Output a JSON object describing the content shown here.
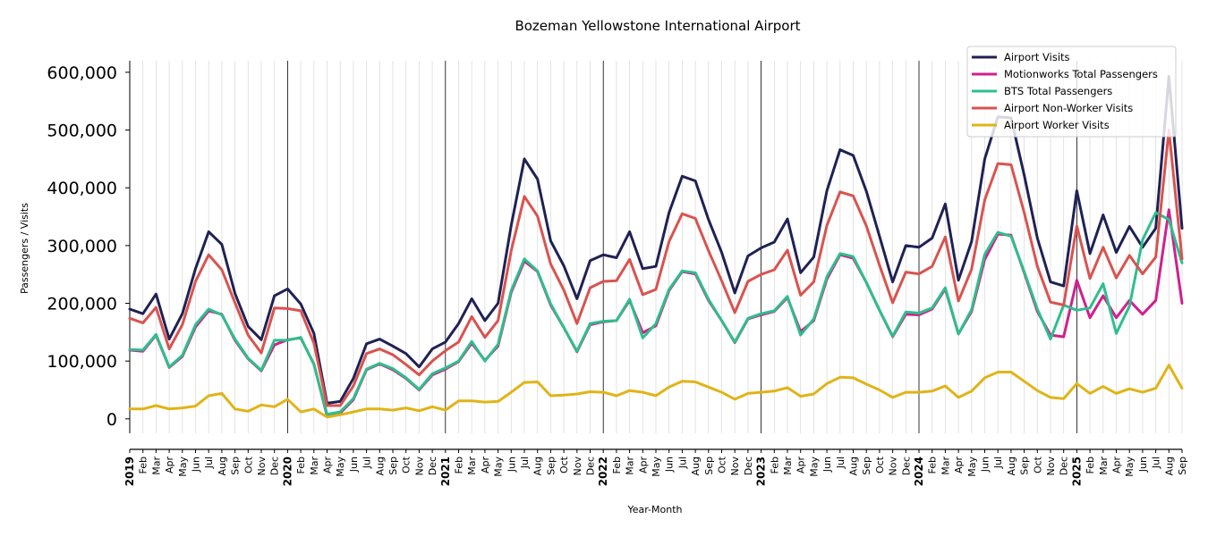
{
  "chart_data": {
    "type": "line",
    "title": "Bozeman Yellowstone International Airport",
    "xlabel": "Year-Month",
    "ylabel": "Passengers / Visits",
    "ylim": [
      -25000,
      620000
    ],
    "yticks": [
      0,
      100000,
      200000,
      300000,
      400000,
      500000,
      600000
    ],
    "ytick_labels": [
      "0",
      "100,000",
      "200,000",
      "300,000",
      "400,000",
      "500,000",
      "600,000"
    ],
    "x": [
      "2019",
      "Feb",
      "Mar",
      "Apr",
      "May",
      "Jun",
      "Jul",
      "Aug",
      "Sep",
      "Oct",
      "Nov",
      "Dec",
      "2020",
      "Feb",
      "Mar",
      "Apr",
      "May",
      "Jun",
      "Jul",
      "Aug",
      "Sep",
      "Oct",
      "Nov",
      "Dec",
      "2021",
      "Feb",
      "Mar",
      "Apr",
      "May",
      "Jun",
      "Jul",
      "Aug",
      "Sep",
      "Oct",
      "Nov",
      "Dec",
      "2022",
      "Feb",
      "Mar",
      "Apr",
      "May",
      "Jun",
      "Jul",
      "Aug",
      "Sep",
      "Oct",
      "Nov",
      "Dec",
      "2023",
      "Feb",
      "Mar",
      "Apr",
      "May",
      "Jun",
      "Jul",
      "Aug",
      "Sep",
      "Oct",
      "Nov",
      "Dec",
      "2024",
      "Feb",
      "Mar",
      "Apr",
      "May",
      "Jun",
      "Jul",
      "Aug",
      "Sep",
      "Oct",
      "Nov",
      "Dec",
      "2025",
      "Feb",
      "Mar",
      "Apr",
      "May",
      "Jun",
      "Jul",
      "Aug",
      "Sep"
    ],
    "legend_position": "top-right",
    "grid": "vertical monthly lines, darker line at each January",
    "series": [
      {
        "name": "Airport Visits",
        "color": "#1f2155",
        "values": [
          190000,
          182000,
          216000,
          138000,
          182000,
          260000,
          324000,
          302000,
          217000,
          160000,
          137000,
          213000,
          225000,
          199000,
          148000,
          27000,
          30000,
          70000,
          130000,
          138000,
          126000,
          113000,
          90000,
          121000,
          133000,
          165000,
          208000,
          170000,
          200000,
          335000,
          450000,
          415000,
          308000,
          265000,
          208000,
          274000,
          284000,
          279000,
          324000,
          260000,
          264000,
          357000,
          420000,
          412000,
          345000,
          288000,
          218000,
          282000,
          296000,
          306000,
          346000,
          253000,
          280000,
          395000,
          466000,
          456000,
          394000,
          316000,
          237000,
          300000,
          297000,
          313000,
          372000,
          240000,
          307000,
          450000,
          523000,
          521000,
          422000,
          313000,
          237000,
          230000,
          395000,
          286000,
          353000,
          288000,
          333000,
          297000,
          330000,
          593000,
          330000
        ]
      },
      {
        "name": "Motionworks Total Passengers",
        "color": "#d01f8e",
        "values": [
          119000,
          117000,
          145000,
          89000,
          108000,
          159000,
          187000,
          181000,
          136000,
          104000,
          83000,
          128000,
          137000,
          140000,
          95000,
          5000,
          10000,
          33000,
          85000,
          95000,
          85000,
          70000,
          50000,
          76000,
          86000,
          99000,
          131000,
          101000,
          126000,
          219000,
          273000,
          255000,
          197000,
          158000,
          116000,
          163000,
          168000,
          170000,
          205000,
          149000,
          161000,
          222000,
          255000,
          251000,
          205000,
          170000,
          132000,
          173000,
          180000,
          186000,
          210000,
          151000,
          170000,
          242000,
          284000,
          278000,
          236000,
          188000,
          142000,
          181000,
          180000,
          190000,
          225000,
          147000,
          186000,
          276000,
          320000,
          318000,
          253000,
          186000,
          145000,
          142000,
          240000,
          175000,
          213000,
          175000,
          205000,
          181000,
          205000,
          362000,
          200000
        ]
      },
      {
        "name": "BTS Total Passengers",
        "color": "#2dbf8c",
        "values": [
          120000,
          119000,
          146000,
          90000,
          110000,
          163000,
          190000,
          180000,
          138000,
          105000,
          84000,
          136000,
          136000,
          141000,
          94000,
          8000,
          12000,
          35000,
          86000,
          96000,
          87000,
          71000,
          51000,
          78000,
          88000,
          100000,
          134000,
          100000,
          129000,
          222000,
          277000,
          256000,
          199000,
          158000,
          117000,
          165000,
          169000,
          170000,
          207000,
          140000,
          165000,
          224000,
          256000,
          253000,
          207000,
          170000,
          133000,
          174000,
          182000,
          187000,
          212000,
          145000,
          173000,
          246000,
          286000,
          281000,
          236000,
          188000,
          143000,
          185000,
          183000,
          192000,
          227000,
          147000,
          189000,
          285000,
          323000,
          316000,
          255000,
          190000,
          138000,
          197000,
          188000,
          192000,
          234000,
          148000,
          195000,
          310000,
          357000,
          345000,
          270000
        ]
      },
      {
        "name": "Airport Non-Worker Visits",
        "color": "#d9534f",
        "values": [
          174000,
          166000,
          193000,
          121000,
          163000,
          238000,
          284000,
          258000,
          201000,
          145000,
          114000,
          192000,
          191000,
          187000,
          131000,
          23000,
          23000,
          57000,
          113000,
          121000,
          111000,
          94000,
          76000,
          100000,
          118000,
          133000,
          177000,
          141000,
          170000,
          291000,
          385000,
          351000,
          268000,
          223000,
          165000,
          227000,
          238000,
          239000,
          276000,
          215000,
          224000,
          307000,
          355000,
          347000,
          291000,
          239000,
          184000,
          238000,
          250000,
          258000,
          292000,
          214000,
          237000,
          335000,
          393000,
          386000,
          334000,
          266000,
          201000,
          254000,
          251000,
          264000,
          315000,
          204000,
          259000,
          379000,
          442000,
          440000,
          357000,
          264000,
          202000,
          197000,
          334000,
          243000,
          297000,
          244000,
          283000,
          251000,
          280000,
          500000,
          277000
        ]
      },
      {
        "name": "Airport Worker Visits",
        "color": "#e0b417",
        "values": [
          17000,
          17000,
          23000,
          17000,
          19000,
          22000,
          40000,
          44000,
          17000,
          13000,
          24000,
          21000,
          34000,
          12000,
          17000,
          3000,
          7000,
          12000,
          17000,
          17000,
          15000,
          19000,
          14000,
          21000,
          15000,
          31000,
          31000,
          29000,
          30000,
          46000,
          63000,
          64000,
          40000,
          41000,
          43000,
          47000,
          46000,
          40000,
          49000,
          46000,
          40000,
          55000,
          65000,
          64000,
          55000,
          46000,
          34000,
          44000,
          46000,
          48000,
          54000,
          39000,
          43000,
          61000,
          72000,
          71000,
          60000,
          50000,
          37000,
          46000,
          46000,
          48000,
          57000,
          37000,
          48000,
          71000,
          81000,
          81000,
          65000,
          49000,
          37000,
          35000,
          61000,
          44000,
          56000,
          44000,
          52000,
          46000,
          53000,
          93000,
          53000
        ]
      }
    ]
  }
}
